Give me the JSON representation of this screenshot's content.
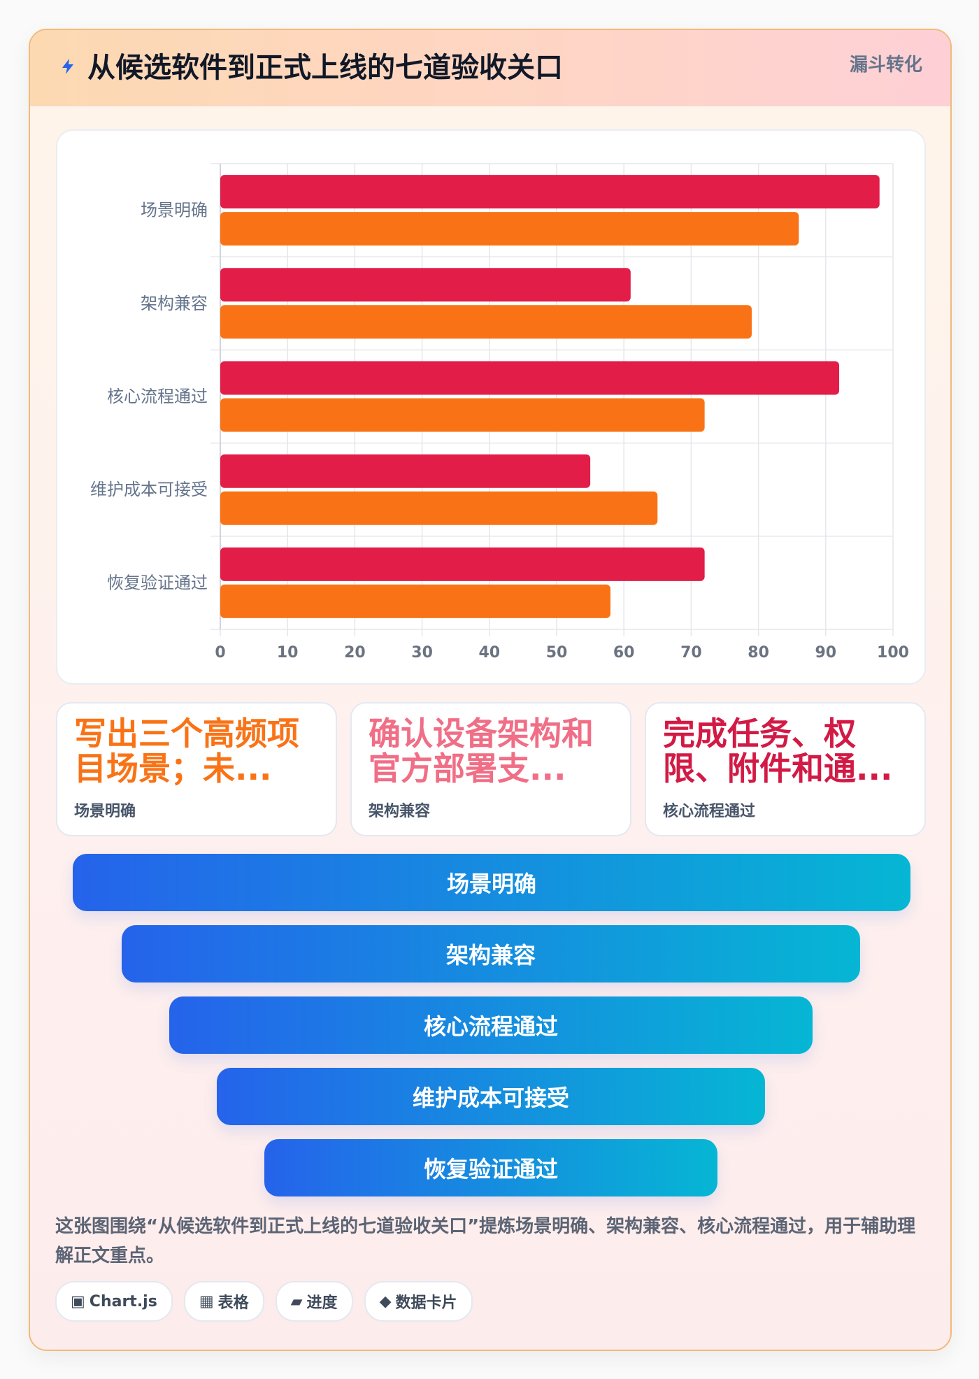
{
  "header": {
    "icon": "lightning-icon",
    "title": "从候选软件到正式上线的七道验收关口",
    "tag": "漏斗转化"
  },
  "chart_data": {
    "type": "bar",
    "orientation": "horizontal",
    "categories": [
      "场景明确",
      "架构兼容",
      "核心流程通过",
      "维护成本可接受",
      "恢复验证通过"
    ],
    "series": [
      {
        "color": "#e11d48",
        "values": [
          98,
          61,
          92,
          55,
          72
        ]
      },
      {
        "color": "#f97316",
        "values": [
          86,
          79,
          72,
          65,
          58
        ]
      }
    ],
    "xlim": [
      0,
      100
    ],
    "xticks": [
      0,
      10,
      20,
      30,
      40,
      50,
      60,
      70,
      80,
      90,
      100
    ],
    "grid": true,
    "legend": "none"
  },
  "stat_cards": [
    {
      "value": "写出三个高频项目场景；未...",
      "label": "场景明确",
      "color": "#f97316"
    },
    {
      "value": "确认设备架构和官方部署支...",
      "label": "架构兼容",
      "color": "#f06e86"
    },
    {
      "value": "完成任务、权限、附件和通...",
      "label": "核心流程通过",
      "color": "#d21a45"
    }
  ],
  "funnel": {
    "steps": [
      "场景明确",
      "架构兼容",
      "核心流程通过",
      "维护成本可接受",
      "恢复验证通过"
    ],
    "gradient": [
      "#2563eb",
      "#06b6d4"
    ]
  },
  "caption": "这张图围绕“从候选软件到正式上线的七道验收关口”提炼场景明确、架构兼容、核心流程通过，用于辅助理解正文重点。",
  "chips": [
    {
      "icon": "▣",
      "label": "Chart.js"
    },
    {
      "icon": "▦",
      "label": "表格"
    },
    {
      "icon": "▰",
      "label": "进度"
    },
    {
      "icon": "◆",
      "label": "数据卡片"
    }
  ]
}
